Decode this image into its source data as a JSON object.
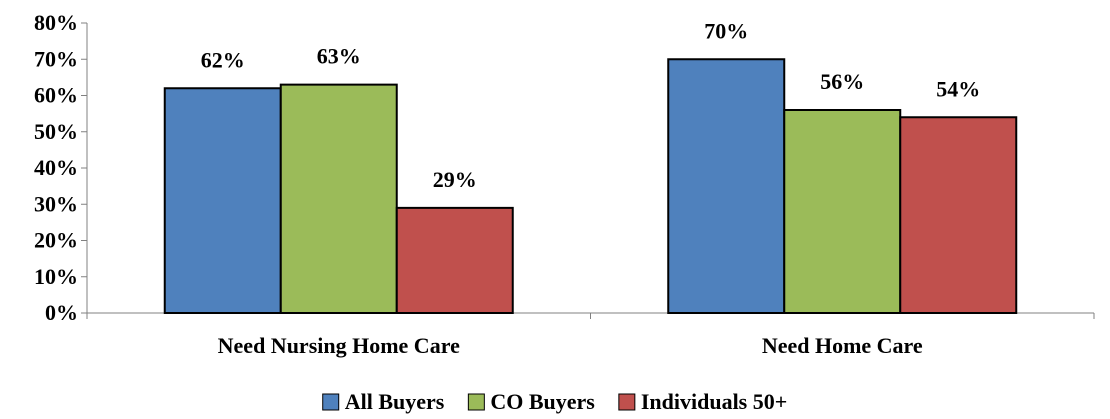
{
  "chart_data": {
    "type": "bar",
    "title": "",
    "xlabel": "",
    "ylabel": "",
    "ylim": [
      0,
      80
    ],
    "y_ticks": [
      "0%",
      "10%",
      "20%",
      "30%",
      "40%",
      "50%",
      "60%",
      "70%",
      "80%"
    ],
    "y_tick_values": [
      0,
      10,
      20,
      30,
      40,
      50,
      60,
      70,
      80
    ],
    "categories": [
      "Need Nursing Home Care",
      "Need Home Care"
    ],
    "series": [
      {
        "name": "All Buyers",
        "values": [
          62,
          70
        ],
        "labels": [
          "62%",
          "70%"
        ],
        "color": "#4f81bd"
      },
      {
        "name": "CO Buyers",
        "values": [
          63,
          56
        ],
        "labels": [
          "63%",
          "56%"
        ],
        "color": "#9bbb59"
      },
      {
        "name": "Individuals 50+",
        "values": [
          29,
          54
        ],
        "labels": [
          "29%",
          "54%"
        ],
        "color": "#c0504d"
      }
    ],
    "grid": false,
    "legend_position": "bottom"
  }
}
